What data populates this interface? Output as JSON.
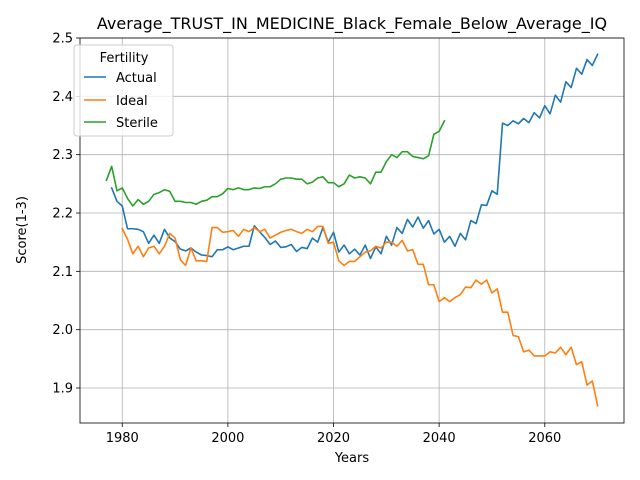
{
  "chart_data": {
    "type": "line",
    "title": "Average_TRUST_IN_MEDICINE_Black_Female_Below_Average_IQ",
    "xlabel": "Years",
    "ylabel": "Score(1-3)",
    "xlim": [
      1972,
      2075
    ],
    "ylim": [
      1.84,
      2.5
    ],
    "xticks": [
      1980,
      2000,
      2020,
      2040,
      2060
    ],
    "yticks": [
      1.9,
      2.0,
      2.1,
      2.2,
      2.3,
      2.4,
      2.5
    ],
    "xtick_labels": [
      "1980",
      "2000",
      "2020",
      "2040",
      "2060"
    ],
    "ytick_labels": [
      "1.9",
      "2.0",
      "2.1",
      "2.2",
      "2.3",
      "2.4",
      "2.5"
    ],
    "grid": true,
    "legend": {
      "title": "Fertility",
      "placement": "top-left"
    },
    "series": [
      {
        "name": "Actual",
        "color": "#1f77b4",
        "x": [
          1978,
          1979,
          1980,
          1981,
          1982,
          1983,
          1984,
          1985,
          1986,
          1987,
          1988,
          1989,
          1990,
          1991,
          1992,
          1993,
          1994,
          1995,
          1996,
          1997,
          1998,
          1999,
          2000,
          2001,
          2002,
          2003,
          2004,
          2005,
          2006,
          2007,
          2008,
          2009,
          2010,
          2011,
          2012,
          2013,
          2014,
          2015,
          2016,
          2017,
          2018,
          2019,
          2020,
          2021,
          2022,
          2023,
          2024,
          2025,
          2026,
          2027,
          2028,
          2029,
          2030,
          2031,
          2032,
          2033,
          2034,
          2035,
          2036,
          2037,
          2038,
          2039,
          2040,
          2041,
          2042,
          2043,
          2044,
          2045,
          2046,
          2047,
          2048,
          2049,
          2050,
          2051,
          2052,
          2053,
          2054,
          2055,
          2056,
          2057,
          2058,
          2059,
          2060,
          2061,
          2062,
          2063,
          2064,
          2065,
          2066,
          2067,
          2068,
          2069,
          2070
        ],
        "values": [
          2.243,
          2.22,
          2.212,
          2.173,
          2.173,
          2.172,
          2.168,
          2.148,
          2.162,
          2.148,
          2.172,
          2.157,
          2.151,
          2.138,
          2.135,
          2.14,
          2.133,
          2.128,
          2.127,
          2.125,
          2.137,
          2.137,
          2.142,
          2.137,
          2.14,
          2.143,
          2.143,
          2.178,
          2.168,
          2.158,
          2.146,
          2.152,
          2.141,
          2.142,
          2.146,
          2.134,
          2.141,
          2.139,
          2.157,
          2.15,
          2.175,
          2.15,
          2.167,
          2.133,
          2.145,
          2.13,
          2.138,
          2.128,
          2.145,
          2.122,
          2.142,
          2.13,
          2.16,
          2.145,
          2.175,
          2.165,
          2.189,
          2.176,
          2.193,
          2.174,
          2.187,
          2.164,
          2.172,
          2.15,
          2.16,
          2.143,
          2.165,
          2.154,
          2.187,
          2.182,
          2.214,
          2.213,
          2.238,
          2.232,
          2.354,
          2.35,
          2.358,
          2.353,
          2.362,
          2.355,
          2.372,
          2.363,
          2.384,
          2.37,
          2.402,
          2.39,
          2.425,
          2.415,
          2.448,
          2.438,
          2.463,
          2.453,
          2.472
        ]
      },
      {
        "name": "Ideal",
        "color": "#ff7f0e",
        "x": [
          1980,
          1981,
          1982,
          1983,
          1984,
          1985,
          1986,
          1987,
          1988,
          1989,
          1990,
          1991,
          1992,
          1993,
          1994,
          1995,
          1996,
          1997,
          1998,
          1999,
          2000,
          2001,
          2002,
          2003,
          2004,
          2005,
          2006,
          2007,
          2008,
          2009,
          2010,
          2011,
          2012,
          2013,
          2014,
          2015,
          2016,
          2017,
          2018,
          2019,
          2020,
          2021,
          2022,
          2023,
          2024,
          2025,
          2026,
          2027,
          2028,
          2029,
          2030,
          2031,
          2032,
          2033,
          2034,
          2035,
          2036,
          2037,
          2038,
          2039,
          2040,
          2041,
          2042,
          2043,
          2044,
          2045,
          2046,
          2047,
          2048,
          2049,
          2050,
          2051,
          2052,
          2053,
          2054,
          2055,
          2056,
          2057,
          2058,
          2059,
          2060,
          2061,
          2062,
          2063,
          2064,
          2065,
          2066,
          2067,
          2068,
          2069,
          2070
        ],
        "values": [
          2.173,
          2.155,
          2.13,
          2.143,
          2.125,
          2.14,
          2.143,
          2.13,
          2.143,
          2.165,
          2.157,
          2.12,
          2.11,
          2.14,
          2.118,
          2.118,
          2.117,
          2.175,
          2.175,
          2.167,
          2.168,
          2.17,
          2.16,
          2.172,
          2.168,
          2.175,
          2.168,
          2.172,
          2.157,
          2.162,
          2.167,
          2.17,
          2.172,
          2.168,
          2.165,
          2.172,
          2.168,
          2.177,
          2.177,
          2.148,
          2.15,
          2.118,
          2.11,
          2.117,
          2.117,
          2.125,
          2.133,
          2.135,
          2.143,
          2.14,
          2.15,
          2.15,
          2.143,
          2.153,
          2.135,
          2.137,
          2.112,
          2.112,
          2.077,
          2.077,
          2.048,
          2.055,
          2.048,
          2.055,
          2.06,
          2.073,
          2.072,
          2.085,
          2.078,
          2.085,
          2.063,
          2.07,
          2.03,
          2.03,
          1.99,
          1.988,
          1.962,
          1.965,
          1.955,
          1.955,
          1.955,
          1.962,
          1.96,
          1.97,
          1.957,
          1.97,
          1.94,
          1.945,
          1.905,
          1.912,
          1.87
        ]
      },
      {
        "name": "Sterile",
        "color": "#2ca02c",
        "x": [
          1977,
          1978,
          1979,
          1980,
          1981,
          1982,
          1983,
          1984,
          1985,
          1986,
          1987,
          1988,
          1989,
          1990,
          1991,
          1992,
          1993,
          1994,
          1995,
          1996,
          1997,
          1998,
          1999,
          2000,
          2001,
          2002,
          2003,
          2004,
          2005,
          2006,
          2007,
          2008,
          2009,
          2010,
          2011,
          2012,
          2013,
          2014,
          2015,
          2016,
          2017,
          2018,
          2019,
          2020,
          2021,
          2022,
          2023,
          2024,
          2025,
          2026,
          2027,
          2028,
          2029,
          2030,
          2031,
          2032,
          2033,
          2034,
          2035,
          2036,
          2037,
          2038,
          2039,
          2040,
          2041
        ],
        "values": [
          2.256,
          2.28,
          2.238,
          2.243,
          2.225,
          2.212,
          2.223,
          2.215,
          2.22,
          2.232,
          2.235,
          2.24,
          2.237,
          2.22,
          2.22,
          2.218,
          2.218,
          2.215,
          2.22,
          2.222,
          2.228,
          2.228,
          2.233,
          2.242,
          2.24,
          2.243,
          2.24,
          2.24,
          2.243,
          2.242,
          2.245,
          2.245,
          2.25,
          2.258,
          2.26,
          2.26,
          2.258,
          2.258,
          2.25,
          2.253,
          2.26,
          2.262,
          2.252,
          2.252,
          2.245,
          2.25,
          2.265,
          2.26,
          2.262,
          2.26,
          2.25,
          2.27,
          2.27,
          2.288,
          2.3,
          2.295,
          2.305,
          2.305,
          2.297,
          2.295,
          2.293,
          2.298,
          2.335,
          2.34,
          2.358
        ]
      }
    ]
  }
}
